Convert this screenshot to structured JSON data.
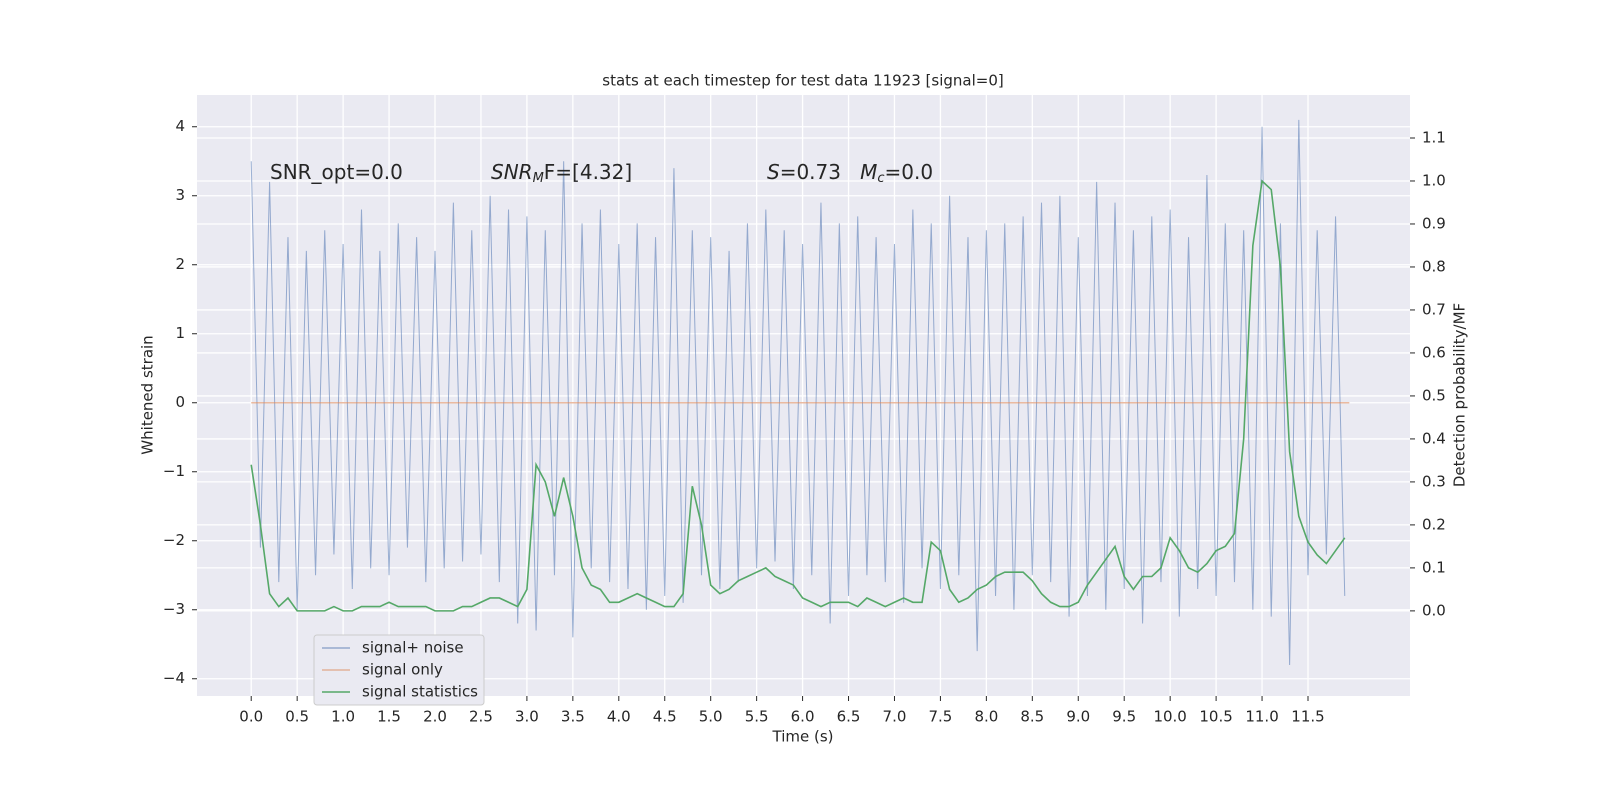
{
  "chart_data": {
    "type": "line",
    "title": "stats at each timestep for test data 11923 [signal=0]",
    "xlabel": "Time (s)",
    "ylabel": "Whitened strain",
    "y2label": "Detection probability/MF",
    "annotations": [
      [
        {
          "text": "SNR_opt=0.0",
          "style": "normal"
        }
      ],
      [
        {
          "text": "SNR",
          "style": "italic"
        },
        {
          "text": "M",
          "style": "sub"
        },
        {
          "text": "F=[4.32]",
          "style": "normal"
        }
      ],
      [
        {
          "text": "S",
          "style": "italic"
        },
        {
          "text": "=0.73   ",
          "style": "normal"
        },
        {
          "text": "M",
          "style": "italic"
        },
        {
          "text": "c",
          "style": "sub"
        },
        {
          "text": "=0.0",
          "style": "normal"
        }
      ]
    ],
    "x": [
      0.0,
      0.1,
      0.2,
      0.3,
      0.4,
      0.5,
      0.6,
      0.7,
      0.8,
      0.9,
      1.0,
      1.1,
      1.2,
      1.3,
      1.4,
      1.5,
      1.6,
      1.7,
      1.8,
      1.9,
      2.0,
      2.1,
      2.2,
      2.3,
      2.4,
      2.5,
      2.6,
      2.7,
      2.8,
      2.9,
      3.0,
      3.1,
      3.2,
      3.3,
      3.4,
      3.5,
      3.6,
      3.7,
      3.8,
      3.9,
      4.0,
      4.1,
      4.2,
      4.3,
      4.4,
      4.5,
      4.6,
      4.7,
      4.8,
      4.9,
      5.0,
      5.1,
      5.2,
      5.3,
      5.4,
      5.5,
      5.6,
      5.7,
      5.8,
      5.9,
      6.0,
      6.1,
      6.2,
      6.3,
      6.4,
      6.5,
      6.6,
      6.7,
      6.8,
      6.9,
      7.0,
      7.1,
      7.2,
      7.3,
      7.4,
      7.5,
      7.6,
      7.7,
      7.8,
      7.9,
      8.0,
      8.1,
      8.2,
      8.3,
      8.4,
      8.5,
      8.6,
      8.7,
      8.8,
      8.9,
      9.0,
      9.1,
      9.2,
      9.3,
      9.4,
      9.5,
      9.6,
      9.7,
      9.8,
      9.9,
      10.0,
      10.1,
      10.2,
      10.3,
      10.4,
      10.5,
      10.6,
      10.7,
      10.8,
      10.9,
      11.0,
      11.1,
      11.2,
      11.3,
      11.4,
      11.5,
      11.6,
      11.7,
      11.8,
      11.9
    ],
    "series": [
      {
        "name": "signal+ noise",
        "color": "#4c72b0",
        "values": [
          3.5,
          -2.1,
          3.2,
          -2.6,
          2.4,
          -3.0,
          2.2,
          -2.5,
          2.5,
          -2.2,
          2.3,
          -2.7,
          2.8,
          -2.4,
          2.2,
          -2.5,
          2.6,
          -2.1,
          2.4,
          -2.6,
          2.2,
          -2.4,
          2.9,
          -2.3,
          2.5,
          -2.2,
          3.0,
          -2.6,
          2.8,
          -3.2,
          2.7,
          -3.3,
          2.5,
          -2.5,
          3.5,
          -3.4,
          2.6,
          -2.4,
          2.8,
          -2.6,
          2.3,
          -2.7,
          2.6,
          -3.0,
          2.4,
          -2.8,
          3.4,
          -2.9,
          2.5,
          -2.5,
          2.4,
          -2.7,
          2.2,
          -2.6,
          2.6,
          -2.4,
          2.8,
          -2.3,
          2.5,
          -2.7,
          2.3,
          -2.5,
          2.9,
          -3.2,
          2.6,
          -2.8,
          2.7,
          -2.5,
          2.4,
          -2.6,
          2.3,
          -2.9,
          2.8,
          -2.4,
          2.6,
          -2.7,
          3.0,
          -2.5,
          2.4,
          -3.6,
          2.5,
          -2.8,
          2.6,
          -3.0,
          2.7,
          -2.5,
          2.9,
          -2.6,
          3.0,
          -3.1,
          2.4,
          -2.8,
          3.2,
          -3.0,
          2.9,
          -2.7,
          2.5,
          -3.2,
          2.7,
          -2.6,
          2.8,
          -3.1,
          2.4,
          -2.7,
          3.3,
          -2.8,
          2.6,
          -2.6,
          2.5,
          -3.0,
          4.0,
          -3.1,
          2.6,
          -3.8,
          4.1,
          -2.5,
          2.5,
          -2.2,
          2.7,
          -2.8
        ]
      },
      {
        "name": "signal only",
        "color": "#dd8452",
        "x": [
          0.0,
          11.95
        ],
        "values": [
          0.0,
          0.0
        ]
      },
      {
        "name": "signal statistics",
        "color": "#55a868",
        "axis": "y2",
        "values": [
          0.34,
          0.2,
          0.04,
          0.01,
          0.03,
          0.0,
          0.0,
          0.0,
          0.0,
          0.01,
          0.0,
          0.0,
          0.01,
          0.01,
          0.01,
          0.02,
          0.01,
          0.01,
          0.01,
          0.01,
          0.0,
          0.0,
          0.0,
          0.01,
          0.01,
          0.02,
          0.03,
          0.03,
          0.02,
          0.01,
          0.05,
          0.34,
          0.3,
          0.22,
          0.31,
          0.22,
          0.1,
          0.06,
          0.05,
          0.02,
          0.02,
          0.03,
          0.04,
          0.03,
          0.02,
          0.01,
          0.01,
          0.04,
          0.29,
          0.2,
          0.06,
          0.04,
          0.05,
          0.07,
          0.08,
          0.09,
          0.1,
          0.08,
          0.07,
          0.06,
          0.03,
          0.02,
          0.01,
          0.02,
          0.02,
          0.02,
          0.01,
          0.03,
          0.02,
          0.01,
          0.02,
          0.03,
          0.02,
          0.02,
          0.16,
          0.14,
          0.05,
          0.02,
          0.03,
          0.05,
          0.06,
          0.08,
          0.09,
          0.09,
          0.09,
          0.07,
          0.04,
          0.02,
          0.01,
          0.01,
          0.02,
          0.06,
          0.09,
          0.12,
          0.15,
          0.08,
          0.05,
          0.08,
          0.08,
          0.1,
          0.17,
          0.14,
          0.1,
          0.09,
          0.11,
          0.14,
          0.15,
          0.18,
          0.4,
          0.85,
          1.0,
          0.98,
          0.8,
          0.37,
          0.22,
          0.16,
          0.13,
          0.11,
          0.14,
          0.17
        ]
      }
    ],
    "xlim": [
      -0.59,
      12.61
    ],
    "ylim": [
      -4.25,
      4.46
    ],
    "y2lim": [
      -0.198,
      1.2
    ],
    "xticks": [
      {
        "value": 0,
        "label": "0.0"
      },
      {
        "value": 0.5,
        "label": "0.5"
      },
      {
        "value": 1,
        "label": "1.0"
      },
      {
        "value": 1.5,
        "label": "1.5"
      },
      {
        "value": 2,
        "label": "2.0"
      },
      {
        "value": 2.5,
        "label": "2.5"
      },
      {
        "value": 3,
        "label": "3.0"
      },
      {
        "value": 3.5,
        "label": "3.5"
      },
      {
        "value": 4,
        "label": "4.0"
      },
      {
        "value": 4.5,
        "label": "4.5"
      },
      {
        "value": 5,
        "label": "5.0"
      },
      {
        "value": 5.5,
        "label": "5.5"
      },
      {
        "value": 6,
        "label": "6.0"
      },
      {
        "value": 6.5,
        "label": "6.5"
      },
      {
        "value": 7,
        "label": "7.0"
      },
      {
        "value": 7.5,
        "label": "7.5"
      },
      {
        "value": 8,
        "label": "8.0"
      },
      {
        "value": 8.5,
        "label": "8.5"
      },
      {
        "value": 9,
        "label": "9.0"
      },
      {
        "value": 9.5,
        "label": "9.5"
      },
      {
        "value": 10,
        "label": "10.0"
      },
      {
        "value": 10.5,
        "label": "10.5"
      },
      {
        "value": 11,
        "label": "11.0"
      },
      {
        "value": 11.5,
        "label": "11.5"
      }
    ],
    "yticks": [
      {
        "value": -4,
        "label": "−4"
      },
      {
        "value": -3,
        "label": "−3"
      },
      {
        "value": -2,
        "label": "−2"
      },
      {
        "value": -1,
        "label": "−1"
      },
      0,
      1,
      2,
      3,
      4
    ],
    "y2ticks": [
      {
        "value": 0,
        "label": "0.0"
      },
      0.1,
      0.2,
      0.3,
      0.4,
      0.5,
      0.6,
      0.7,
      0.8,
      0.9,
      {
        "value": 1,
        "label": "1.0"
      },
      1.1
    ],
    "grid": true,
    "legend": "lower left"
  }
}
